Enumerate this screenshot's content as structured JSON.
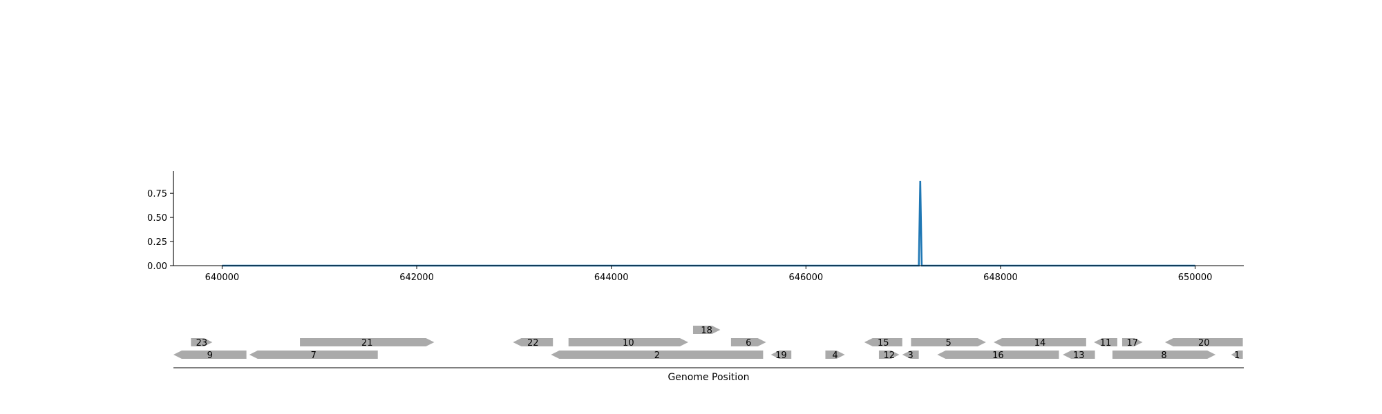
{
  "chart_data": [
    {
      "type": "line",
      "title": "",
      "xlabel": "",
      "ylabel": "",
      "xlim": [
        639500,
        650500
      ],
      "ylim": [
        0,
        0.98
      ],
      "x_ticks": [
        640000,
        642000,
        644000,
        646000,
        648000,
        650000
      ],
      "x_tick_labels": [
        "640000",
        "642000",
        "644000",
        "646000",
        "648000",
        "650000"
      ],
      "y_ticks": [
        0.0,
        0.25,
        0.5,
        0.75
      ],
      "y_tick_labels": [
        "0.00",
        "0.25",
        "0.50",
        "0.75"
      ],
      "grid": false,
      "series": [
        {
          "color": "#1f77b4",
          "x": [
            640000,
            647160,
            647175,
            647190,
            650000
          ],
          "y": [
            0.0,
            0.0,
            0.88,
            0.0,
            0.0
          ]
        }
      ]
    },
    {
      "type": "gene-track",
      "xlabel": "Genome Position",
      "xlim": [
        639500,
        650500
      ],
      "feature_color": "#aaaaaa",
      "features": [
        {
          "label": "9",
          "start": 639500,
          "end": 640250,
          "strand": -1,
          "level": 0
        },
        {
          "label": "7",
          "start": 640280,
          "end": 641600,
          "strand": -1,
          "level": 0
        },
        {
          "label": "2",
          "start": 643380,
          "end": 645560,
          "strand": -1,
          "level": 0
        },
        {
          "label": "19",
          "start": 645640,
          "end": 645850,
          "strand": -1,
          "level": 0
        },
        {
          "label": "4",
          "start": 646200,
          "end": 646400,
          "strand": 1,
          "level": 0
        },
        {
          "label": "12",
          "start": 646750,
          "end": 646960,
          "strand": 1,
          "level": 0
        },
        {
          "label": "3",
          "start": 646990,
          "end": 647160,
          "strand": -1,
          "level": 0
        },
        {
          "label": "16",
          "start": 647350,
          "end": 648600,
          "strand": -1,
          "level": 0
        },
        {
          "label": "13",
          "start": 648640,
          "end": 648970,
          "strand": -1,
          "level": 0
        },
        {
          "label": "8",
          "start": 649150,
          "end": 650210,
          "strand": 1,
          "level": 0
        },
        {
          "label": "1",
          "start": 650370,
          "end": 650490,
          "strand": -1,
          "level": 0
        },
        {
          "label": "23",
          "start": 639680,
          "end": 639900,
          "strand": 1,
          "level": 1
        },
        {
          "label": "21",
          "start": 640800,
          "end": 642180,
          "strand": 1,
          "level": 1
        },
        {
          "label": "22",
          "start": 642990,
          "end": 643400,
          "strand": -1,
          "level": 1
        },
        {
          "label": "10",
          "start": 643560,
          "end": 644790,
          "strand": 1,
          "level": 1
        },
        {
          "label": "6",
          "start": 645230,
          "end": 645590,
          "strand": 1,
          "level": 1
        },
        {
          "label": "15",
          "start": 646600,
          "end": 646990,
          "strand": -1,
          "level": 1
        },
        {
          "label": "5",
          "start": 647080,
          "end": 647850,
          "strand": 1,
          "level": 1
        },
        {
          "label": "14",
          "start": 647930,
          "end": 648880,
          "strand": -1,
          "level": 1
        },
        {
          "label": "11",
          "start": 648960,
          "end": 649200,
          "strand": -1,
          "level": 1
        },
        {
          "label": "17",
          "start": 649250,
          "end": 649460,
          "strand": 1,
          "level": 1
        },
        {
          "label": "20",
          "start": 649690,
          "end": 650490,
          "strand": -1,
          "level": 1
        },
        {
          "label": "18",
          "start": 644840,
          "end": 645120,
          "strand": 1,
          "level": 2
        }
      ]
    }
  ]
}
